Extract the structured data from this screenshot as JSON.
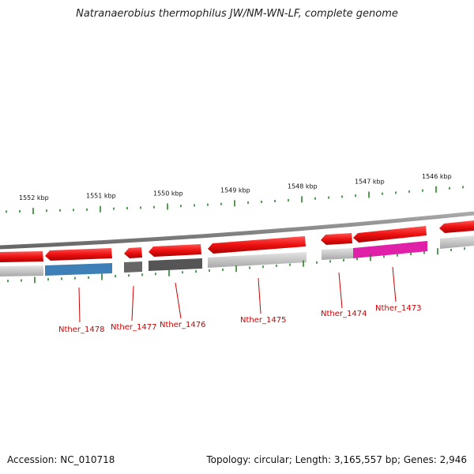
{
  "title": "Natranaerobius thermophilus JW/NM-WN-LF, complete genome",
  "footer": {
    "accession": "Accession: NC_010718",
    "summary": "Topology: circular; Length: 3,165,557 bp; Genes: 2,946"
  },
  "kbp_labels": [
    "1552 kbp",
    "1551 kbp",
    "1550 kbp",
    "1549 kbp",
    "1548 kbp",
    "1547 kbp",
    "1546 kbp"
  ],
  "genes": [
    {
      "locus": "Nther_1478",
      "color": "#3f7fb8"
    },
    {
      "locus": "Nther_1477",
      "color": "#666666"
    },
    {
      "locus": "Nther_1476",
      "color": "#555555"
    },
    {
      "locus": "Nther_1475",
      "color": "#c8c8c8"
    },
    {
      "locus": "Nther_1474",
      "color": "#c8c8c8"
    },
    {
      "locus": "Nther_1473",
      "color": "#e020a8"
    }
  ],
  "colors": {
    "cds": "#ee1111",
    "backbone": "#888888",
    "tick": "#1a7a1a",
    "label": "#cc0000"
  }
}
